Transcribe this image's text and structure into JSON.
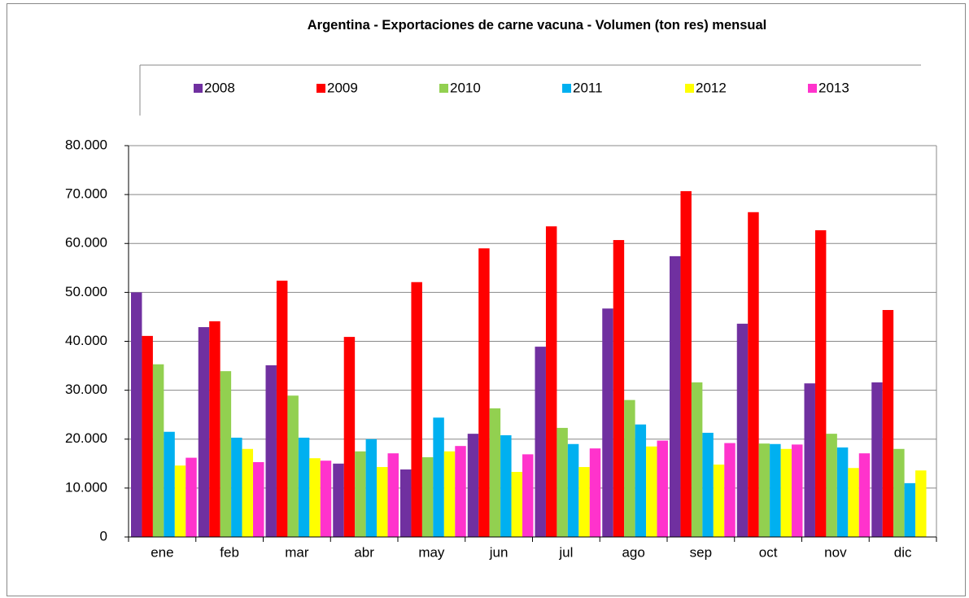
{
  "chart_data": {
    "type": "bar",
    "title": "Argentina - Exportaciones de carne vacuna - Volumen (ton res) mensual",
    "categories": [
      "ene",
      "feb",
      "mar",
      "abr",
      "may",
      "jun",
      "jul",
      "ago",
      "sep",
      "oct",
      "nov",
      "dic"
    ],
    "series": [
      {
        "name": "2008",
        "color": "#7030a0",
        "values": [
          50000,
          42900,
          35100,
          15000,
          13800,
          21100,
          38900,
          46700,
          57400,
          43600,
          31400,
          31600
        ]
      },
      {
        "name": "2009",
        "color": "#ff0000",
        "values": [
          41100,
          44100,
          52400,
          40900,
          52100,
          59000,
          63500,
          60700,
          70700,
          66400,
          62700,
          46400
        ]
      },
      {
        "name": "2010",
        "color": "#92d050",
        "values": [
          35300,
          33900,
          28900,
          17500,
          16300,
          26300,
          22300,
          28000,
          31600,
          19100,
          21100,
          18000
        ]
      },
      {
        "name": "2011",
        "color": "#00b0f0",
        "values": [
          21500,
          20300,
          20300,
          20000,
          24400,
          20800,
          19000,
          23000,
          21300,
          19000,
          18300,
          11000
        ]
      },
      {
        "name": "2012",
        "color": "#ffff00",
        "values": [
          14600,
          18000,
          16100,
          14300,
          17500,
          13300,
          14300,
          18500,
          14800,
          18000,
          14100,
          13600
        ]
      },
      {
        "name": "2013",
        "color": "#ff33cc",
        "values": [
          16200,
          15300,
          15600,
          17100,
          18600,
          16900,
          18100,
          19700,
          19200,
          18900,
          17100,
          null
        ]
      }
    ],
    "ylim": [
      0,
      80000
    ],
    "yticks": [
      0,
      {
        "value": 10000,
        "label": "10.000"
      },
      {
        "value": 20000,
        "label": "20.000"
      },
      {
        "value": 30000,
        "label": "30.000"
      },
      {
        "value": 40000,
        "label": "40.000"
      },
      {
        "value": 50000,
        "label": "50.000"
      },
      {
        "value": 60000,
        "label": "60.000"
      },
      {
        "value": 70000,
        "label": "70.000"
      },
      {
        "value": 80000,
        "label": "80.000"
      }
    ],
    "grid": true,
    "legend": "top"
  }
}
